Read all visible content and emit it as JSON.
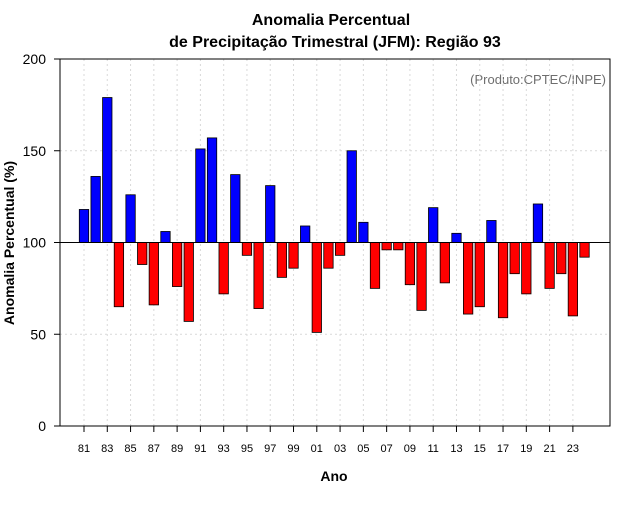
{
  "chart_data": {
    "type": "bar",
    "title": [
      "Anomalia Percentual",
      "de Precipitação Trimestral (JFM): Região 93"
    ],
    "xlabel": "Ano",
    "ylabel": "Anomalia Percentual (%)",
    "credit": "(Produto:CPTEC/INPE)",
    "ylim": [
      0,
      200
    ],
    "yticks": [
      0,
      50,
      100,
      150,
      200
    ],
    "baseline": 100,
    "grid": true,
    "colors": {
      "above": "#0000ff",
      "below": "#ff0000",
      "outline": "#000000",
      "grid": "#d9d9d9"
    },
    "categories": [
      "1981",
      "1982",
      "1983",
      "1984",
      "1985",
      "1986",
      "1987",
      "1988",
      "1989",
      "1990",
      "1991",
      "1992",
      "1993",
      "1994",
      "1995",
      "1996",
      "1997",
      "1998",
      "1999",
      "2000",
      "2001",
      "2002",
      "2003",
      "2004",
      "2005",
      "2006",
      "2007",
      "2008",
      "2009",
      "2010",
      "2011",
      "2012",
      "2013",
      "2014",
      "2015",
      "2016",
      "2017",
      "2018",
      "2019",
      "2020",
      "2021",
      "2022",
      "2023",
      "2024"
    ],
    "xtick_labels": [
      "81",
      "83",
      "85",
      "87",
      "89",
      "91",
      "93",
      "95",
      "97",
      "99",
      "01",
      "03",
      "05",
      "07",
      "09",
      "11",
      "13",
      "15",
      "17",
      "19",
      "21",
      "23"
    ],
    "values": [
      118,
      136,
      179,
      65,
      126,
      88,
      66,
      106,
      76,
      57,
      151,
      157,
      72,
      137,
      93,
      64,
      131,
      81,
      86,
      109,
      51,
      86,
      93,
      150,
      111,
      75,
      96,
      96,
      77,
      63,
      119,
      78,
      105,
      61,
      65,
      112,
      59,
      83,
      72,
      121,
      75,
      83,
      60,
      92
    ]
  }
}
